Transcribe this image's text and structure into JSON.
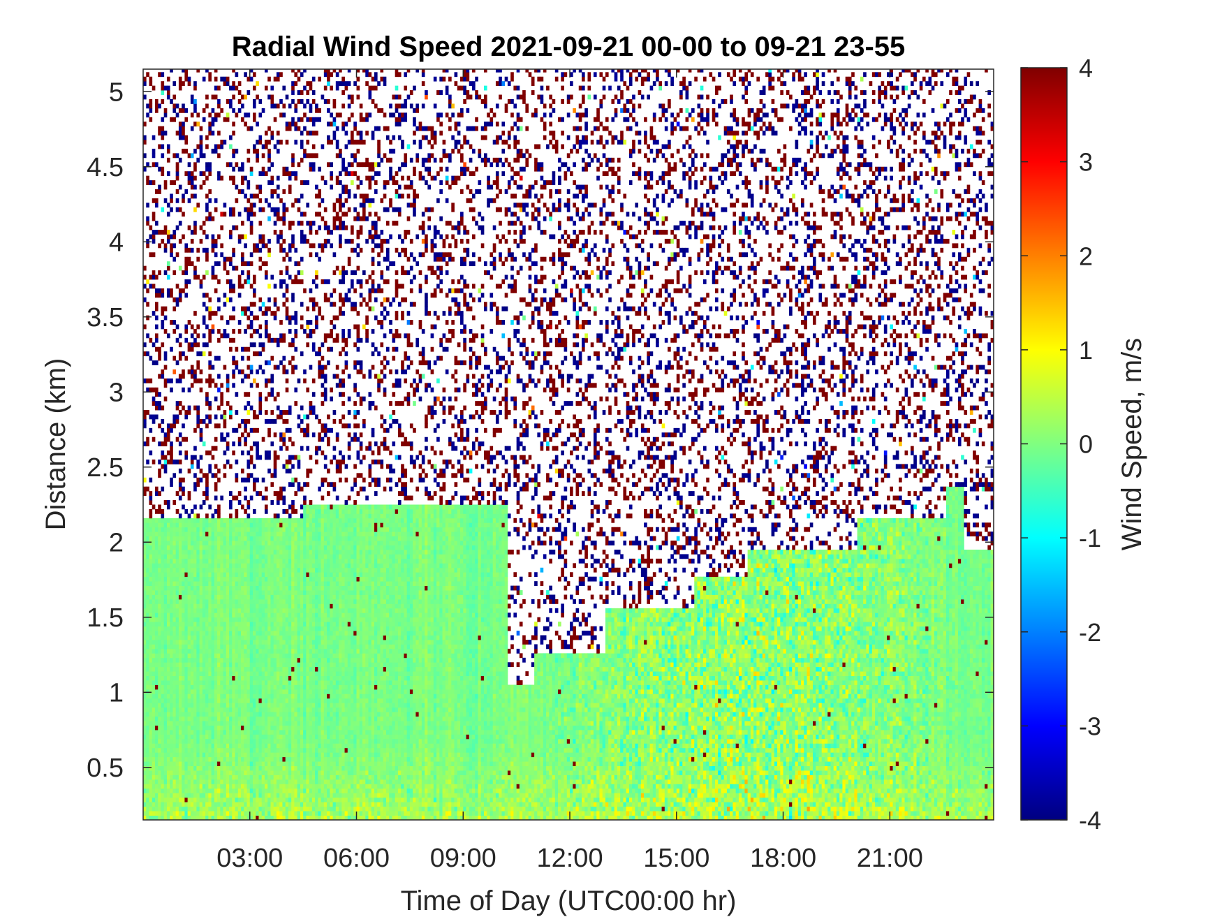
{
  "chart_data": {
    "type": "heatmap",
    "title": "Radial Wind Speed 2021-09-21 00-00 to 09-21 23-55",
    "xlabel": "Time of Day (UTC00:00 hr)",
    "ylabel": "Distance (km)",
    "colorbar_label": "Wind Speed, m/s",
    "x_unit": "hours since 00:00 UTC",
    "xlim": [
      0,
      23.92
    ],
    "ylim": [
      0.15,
      5.15
    ],
    "clim": [
      -4,
      4
    ],
    "x_ticks": [
      {
        "value": 3,
        "label": "03:00"
      },
      {
        "value": 6,
        "label": "06:00"
      },
      {
        "value": 9,
        "label": "09:00"
      },
      {
        "value": 12,
        "label": "12:00"
      },
      {
        "value": 15,
        "label": "15:00"
      },
      {
        "value": 18,
        "label": "18:00"
      },
      {
        "value": 21,
        "label": "21:00"
      }
    ],
    "y_ticks": [
      {
        "value": 0.5,
        "label": "0.5"
      },
      {
        "value": 1,
        "label": "1"
      },
      {
        "value": 1.5,
        "label": "1.5"
      },
      {
        "value": 2,
        "label": "2"
      },
      {
        "value": 2.5,
        "label": "2.5"
      },
      {
        "value": 3,
        "label": "3"
      },
      {
        "value": 3.5,
        "label": "3.5"
      },
      {
        "value": 4,
        "label": "4"
      },
      {
        "value": 4.5,
        "label": "4.5"
      },
      {
        "value": 5,
        "label": "5"
      }
    ],
    "colorbar_ticks": [
      {
        "value": 4,
        "label": "4"
      },
      {
        "value": 3,
        "label": "3"
      },
      {
        "value": 2,
        "label": "2"
      },
      {
        "value": 1,
        "label": "1"
      },
      {
        "value": 0,
        "label": "0"
      },
      {
        "value": -1,
        "label": "-1"
      },
      {
        "value": -2,
        "label": "-2"
      },
      {
        "value": -3,
        "label": "-3"
      },
      {
        "value": -4,
        "label": "-4"
      }
    ],
    "colormap": "jet",
    "grid": false,
    "valid_data_top_km": [
      {
        "time": "00:00",
        "top_km": 2.15
      },
      {
        "time": "04:30",
        "top_km": 2.25
      },
      {
        "time": "10:15",
        "top_km": 1.05
      },
      {
        "time": "11:00",
        "top_km": 1.25
      },
      {
        "time": "13:00",
        "top_km": 1.55
      },
      {
        "time": "15:30",
        "top_km": 1.75
      },
      {
        "time": "17:00",
        "top_km": 1.95
      },
      {
        "time": "20:00",
        "top_km": 2.15
      },
      {
        "time": "22:30",
        "top_km": 2.35
      },
      {
        "time": "23:00",
        "top_km": 1.95
      }
    ],
    "above_top": "noise: saturated ±4 m/s speckle"
  }
}
